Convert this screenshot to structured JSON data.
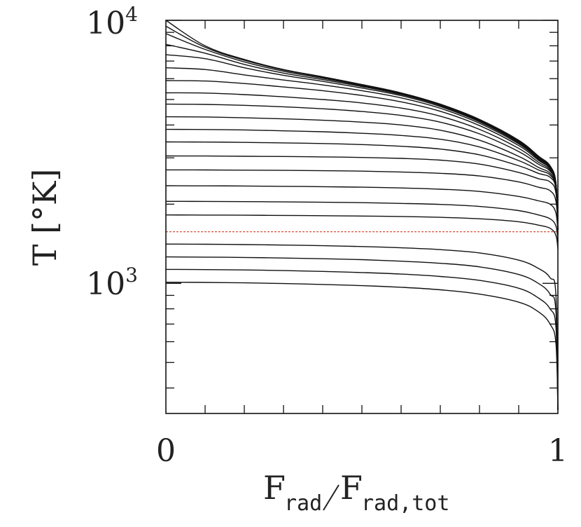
{
  "chart_data": {
    "type": "line",
    "xlabel_main": "F",
    "xlabel_num_sub": "rad",
    "xlabel_den_sub": "rad,tot",
    "ylabel": "T  [°K]",
    "x_tick_labels": [
      "0",
      "1"
    ],
    "y_tick_labels": [
      {
        "base": "10",
        "exp": "3"
      },
      {
        "base": "10",
        "exp": "4"
      }
    ],
    "y_scale": "log",
    "xlim": [
      0,
      1
    ],
    "ylim": [
      320,
      10000
    ],
    "x_minor_ticks": 0.1,
    "reference_line": {
      "y": 1570,
      "style": "dotted",
      "color": "#cc2200"
    },
    "x": [
      0,
      0.1,
      0.2,
      0.3,
      0.4,
      0.5,
      0.6,
      0.7,
      0.8,
      0.9,
      0.95,
      0.98,
      0.995,
      1.0
    ],
    "series": [
      {
        "values": [
          10000,
          8000,
          7100,
          6500,
          6100,
          5700,
          5300,
          4800,
          4200,
          3500,
          3050,
          2800,
          2400,
          1600
        ]
      },
      {
        "values": [
          9500,
          7900,
          7050,
          6470,
          6070,
          5680,
          5280,
          4780,
          4180,
          3480,
          3030,
          2790,
          2400,
          1600
        ]
      },
      {
        "values": [
          8900,
          7750,
          6950,
          6400,
          6020,
          5640,
          5250,
          4760,
          4160,
          3460,
          3010,
          2780,
          2400,
          1600
        ]
      },
      {
        "values": [
          8100,
          7500,
          6800,
          6300,
          5950,
          5600,
          5220,
          4740,
          4140,
          3440,
          3000,
          2770,
          2400,
          1600
        ]
      },
      {
        "values": [
          7400,
          7150,
          6600,
          6180,
          5860,
          5530,
          5170,
          4700,
          4110,
          3420,
          2990,
          2760,
          2390,
          1600
        ]
      },
      {
        "values": [
          6600,
          6500,
          6200,
          5930,
          5680,
          5400,
          5070,
          4630,
          4060,
          3390,
          2970,
          2750,
          2390,
          1600
        ]
      },
      {
        "values": [
          5900,
          5880,
          5750,
          5580,
          5400,
          5180,
          4900,
          4510,
          3980,
          3340,
          2940,
          2730,
          2380,
          1600
        ]
      },
      {
        "values": [
          5300,
          5290,
          5220,
          5120,
          5000,
          4850,
          4640,
          4320,
          3850,
          3260,
          2890,
          2700,
          2370,
          1600
        ]
      },
      {
        "values": [
          4800,
          4790,
          4750,
          4690,
          4610,
          4500,
          4350,
          4100,
          3700,
          3170,
          2840,
          2670,
          2350,
          1600
        ]
      },
      {
        "values": [
          4300,
          4290,
          4260,
          4220,
          4170,
          4100,
          4000,
          3820,
          3500,
          3040,
          2760,
          2620,
          2320,
          1600
        ]
      },
      {
        "values": [
          3850,
          3845,
          3830,
          3800,
          3770,
          3720,
          3650,
          3530,
          3300,
          2930,
          2700,
          2580,
          2300,
          1600
        ]
      },
      {
        "values": [
          3450,
          3445,
          3435,
          3420,
          3400,
          3370,
          3320,
          3240,
          3080,
          2800,
          2620,
          2530,
          2280,
          1600
        ]
      },
      {
        "values": [
          3050,
          3048,
          3042,
          3035,
          3025,
          3010,
          2985,
          2940,
          2840,
          2640,
          2500,
          2430,
          2200,
          1600
        ]
      },
      {
        "values": [
          2700,
          2698,
          2694,
          2688,
          2680,
          2670,
          2650,
          2620,
          2560,
          2430,
          2320,
          2250,
          2050,
          1600
        ]
      },
      {
        "values": [
          2350,
          2348,
          2344,
          2338,
          2330,
          2320,
          2305,
          2280,
          2235,
          2140,
          2060,
          2000,
          1850,
          1550
        ]
      },
      {
        "values": [
          2050,
          2048,
          2045,
          2040,
          2034,
          2026,
          2013,
          1995,
          1960,
          1890,
          1820,
          1760,
          1650,
          1450
        ]
      },
      {
        "values": [
          1820,
          1818,
          1815,
          1812,
          1808,
          1802,
          1795,
          1782,
          1760,
          1715,
          1665,
          1620,
          1520,
          1350
        ]
      },
      {
        "values": [
          1410,
          1408,
          1404,
          1398,
          1390,
          1380,
          1365,
          1343,
          1305,
          1225,
          1140,
          1050,
          900,
          330
        ]
      },
      {
        "values": [
          1260,
          1258,
          1254,
          1248,
          1240,
          1230,
          1214,
          1192,
          1155,
          1080,
          1000,
          910,
          780,
          330
        ]
      },
      {
        "values": [
          1130,
          1128,
          1124,
          1118,
          1110,
          1099,
          1084,
          1062,
          1026,
          958,
          880,
          800,
          680,
          330
        ]
      },
      {
        "values": [
          1010,
          1008,
          1004,
          998,
          990,
          980,
          966,
          945,
          910,
          848,
          780,
          700,
          590,
          330
        ]
      }
    ]
  }
}
